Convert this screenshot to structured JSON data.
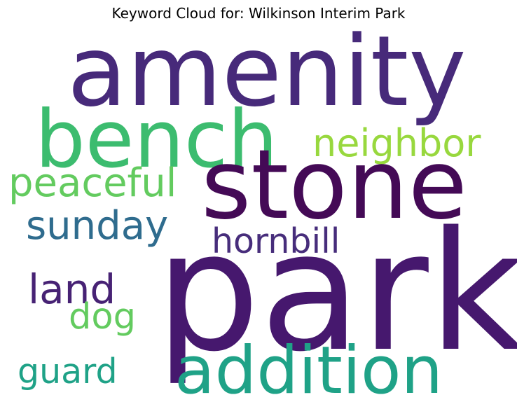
{
  "title": "Keyword Cloud for: Wilkinson Interim Park",
  "chart_data": {
    "type": "wordcloud",
    "title": "Keyword Cloud for: Wilkinson Interim Park",
    "words": [
      {
        "text": "park",
        "weight": 1.0,
        "color": "#46186e"
      },
      {
        "text": "amenity",
        "weight": 0.59,
        "color": "#472a7a"
      },
      {
        "text": "stone",
        "weight": 0.58,
        "color": "#440a56"
      },
      {
        "text": "bench",
        "weight": 0.48,
        "color": "#3cbc6f"
      },
      {
        "text": "addition",
        "weight": 0.4,
        "color": "#1fa287"
      },
      {
        "text": "land",
        "weight": 0.25,
        "color": "#472274"
      },
      {
        "text": "peaceful",
        "weight": 0.24,
        "color": "#63cb5f"
      },
      {
        "text": "sunday",
        "weight": 0.24,
        "color": "#2f6c8e"
      },
      {
        "text": "neighbor",
        "weight": 0.23,
        "color": "#98d83e"
      },
      {
        "text": "dog",
        "weight": 0.22,
        "color": "#63cb5f"
      },
      {
        "text": "hornbill",
        "weight": 0.21,
        "color": "#472d7b"
      },
      {
        "text": "guard",
        "weight": 0.21,
        "color": "#1fa287"
      }
    ]
  }
}
